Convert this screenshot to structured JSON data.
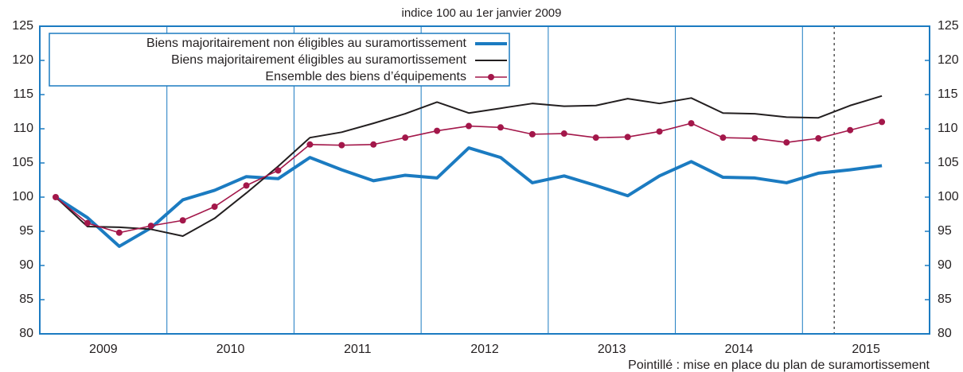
{
  "chart_data": {
    "type": "line",
    "subtitle": "indice 100 au 1er janvier 2009",
    "x": [
      2009.125,
      2009.375,
      2009.625,
      2009.875,
      2010.125,
      2010.375,
      2010.625,
      2010.875,
      2011.125,
      2011.375,
      2011.625,
      2011.875,
      2012.125,
      2012.375,
      2012.625,
      2012.875,
      2013.125,
      2013.375,
      2013.625,
      2013.875,
      2014.125,
      2014.375,
      2014.625,
      2014.875,
      2015.125,
      2015.375,
      2015.625
    ],
    "series": [
      {
        "name": "Biens majoritairement non éligibles au suramortissement",
        "color": "#1b7bc1",
        "values": [
          100,
          97,
          92.8,
          95.5,
          99.6,
          101,
          103,
          102.7,
          105.8,
          104,
          102.4,
          103.2,
          102.8,
          107.2,
          105.8,
          102.1,
          103.1,
          101.7,
          100.2,
          103.1,
          105.2,
          102.9,
          102.8,
          102.1,
          103.5,
          104,
          104.6
        ]
      },
      {
        "name": "Biens majoritairement éligibles au suramortissement",
        "color": "#231f20",
        "values": [
          100,
          95.7,
          95.6,
          95.3,
          94.3,
          96.9,
          100.6,
          104.5,
          108.7,
          109.5,
          110.8,
          112.2,
          113.9,
          112.3,
          113,
          113.7,
          113.3,
          113.4,
          114.4,
          113.7,
          114.5,
          112.3,
          112.2,
          111.7,
          111.6,
          113.4,
          114.8
        ]
      },
      {
        "name": "Ensemble des biens d’équipements",
        "color": "#a3174a",
        "markers": true,
        "values": [
          100,
          96.2,
          94.8,
          95.8,
          96.6,
          98.6,
          101.7,
          103.9,
          107.7,
          107.6,
          107.7,
          108.7,
          109.7,
          110.4,
          110.2,
          109.2,
          109.3,
          108.7,
          108.8,
          109.6,
          110.8,
          108.7,
          108.6,
          108,
          108.6,
          109.8,
          111
        ]
      }
    ],
    "xlim": [
      2009,
      2016
    ],
    "xticks": [
      {
        "value": 2009.5,
        "label": "2009"
      },
      {
        "value": 2010.5,
        "label": "2010"
      },
      {
        "value": 2011.5,
        "label": "2011"
      },
      {
        "value": 2012.5,
        "label": "2012"
      },
      {
        "value": 2013.5,
        "label": "2013"
      },
      {
        "value": 2014.5,
        "label": "2014"
      },
      {
        "value": 2015.5,
        "label": "2015"
      }
    ],
    "xgrid": [
      2010,
      2011,
      2012,
      2013,
      2014,
      2015
    ],
    "ylim": [
      80,
      125
    ],
    "yticks": [
      80,
      85,
      90,
      95,
      100,
      105,
      110,
      115,
      120,
      125
    ],
    "y2lim": [
      80,
      125
    ],
    "y2ticks": [
      80,
      85,
      90,
      95,
      100,
      105,
      110,
      115,
      120,
      125
    ],
    "marker_line": 2015.25,
    "annotation": "Pointillé : mise en place du plan de suramortissement",
    "legend": "upper left"
  }
}
